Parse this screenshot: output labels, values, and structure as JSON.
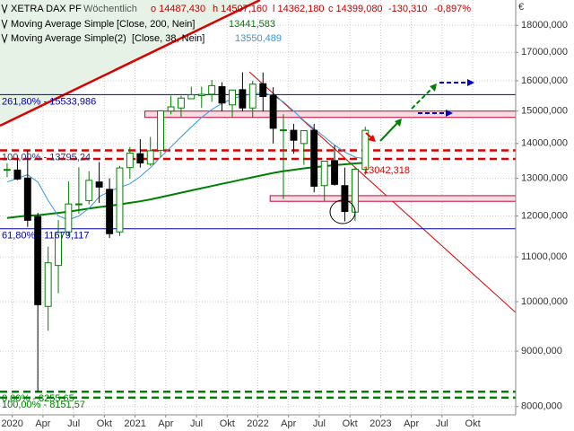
{
  "chart_data": {
    "type": "candlestick",
    "header": {
      "title": "XETRA DAX PF",
      "interval": "Wöchentlich",
      "open": "o 14487,430",
      "high": "h 14507,160",
      "low": "l 14362,180",
      "close": "c 14399,080",
      "change": "-130,310",
      "change_pct": "-0,897%"
    },
    "currency": "€",
    "log_scale": true,
    "grid": true,
    "ylim": [
      7860,
      19000
    ],
    "yticks": [
      {
        "value": 8000,
        "label": "8000,000"
      },
      {
        "value": 9000,
        "label": "9000,000"
      },
      {
        "value": 10000,
        "label": "10000,000"
      },
      {
        "value": 11000,
        "label": "11000,000"
      },
      {
        "value": 12000,
        "label": "12000,000"
      },
      {
        "value": 13000,
        "label": "13000,000"
      },
      {
        "value": 14000,
        "label": "14000,000"
      },
      {
        "value": 15000,
        "label": "15000,000"
      },
      {
        "value": 16000,
        "label": "16000,000"
      },
      {
        "value": 17000,
        "label": "17000,000"
      },
      {
        "value": 18000,
        "label": "18000,000"
      }
    ],
    "xlim": [
      2019.9,
      2024.1
    ],
    "xticks": [
      {
        "value": 2020,
        "label": "2020"
      },
      {
        "value": 2020.25,
        "label": "Apr"
      },
      {
        "value": 2020.5,
        "label": "Jul"
      },
      {
        "value": 2020.75,
        "label": "Okt"
      },
      {
        "value": 2021,
        "label": "2021"
      },
      {
        "value": 2021.25,
        "label": "Apr"
      },
      {
        "value": 2021.5,
        "label": "Jul"
      },
      {
        "value": 2021.75,
        "label": "Okt"
      },
      {
        "value": 2022,
        "label": "2022"
      },
      {
        "value": 2022.25,
        "label": "Apr"
      },
      {
        "value": 2022.5,
        "label": "Jul"
      },
      {
        "value": 2022.75,
        "label": "Okt"
      },
      {
        "value": 2023,
        "label": "2023"
      },
      {
        "value": 2023.25,
        "label": "Apr"
      },
      {
        "value": 2023.5,
        "label": "Jul"
      },
      {
        "value": 2023.75,
        "label": "Okt"
      }
    ],
    "up_color": "#008000",
    "down_color": "#000000",
    "x": [
      2019.958,
      2020.042,
      2020.125,
      2020.208,
      2020.292,
      2020.375,
      2020.458,
      2020.542,
      2020.625,
      2020.708,
      2020.792,
      2020.875,
      2020.958,
      2021.042,
      2021.125,
      2021.208,
      2021.292,
      2021.375,
      2021.458,
      2021.542,
      2021.625,
      2021.708,
      2021.792,
      2021.875,
      2021.958,
      2022.042,
      2022.125,
      2022.208,
      2022.292,
      2022.375,
      2022.458,
      2022.542,
      2022.625,
      2022.708,
      2022.792,
      2022.875
    ],
    "open": [
      13236,
      13233,
      13009,
      11985,
      9900,
      10800,
      11600,
      12300,
      12400,
      12900,
      12700,
      11600,
      13300,
      13700,
      13400,
      13800,
      15000,
      15100,
      15400,
      15500,
      15550,
      15800,
      15200,
      15700,
      15100,
      15900,
      15500,
      14400,
      14400,
      14000,
      14400,
      12800,
      13500,
      12800,
      12100,
      13250
    ],
    "high": [
      13425,
      13640,
      13795,
      12080,
      11240,
      11900,
      12913,
      13313,
      13200,
      13460,
      13000,
      13350,
      13900,
      14131,
      14200,
      15030,
      15500,
      15500,
      15800,
      15800,
      16030,
      15950,
      15700,
      16290,
      16000,
      16285,
      15780,
      14900,
      14600,
      14400,
      14600,
      13400,
      13950,
      13300,
      13300,
      14507
    ],
    "low": [
      13036,
      12950,
      11724,
      8256,
      9400,
      10180,
      11500,
      12060,
      12300,
      12340,
      11450,
      11500,
      12990,
      13300,
      13350,
      13600,
      14900,
      14800,
      15400,
      15100,
      15300,
      15000,
      14800,
      15000,
      14800,
      15000,
      14000,
      12439,
      13700,
      13380,
      12618,
      12390,
      12800,
      11863,
      11869,
      13100
    ],
    "close": [
      13249,
      12982,
      11890,
      9936,
      10862,
      11587,
      12311,
      12313,
      12945,
      12761,
      11556,
      13291,
      13719,
      13432,
      13786,
      15008,
      15136,
      15421,
      15531,
      15544,
      15835,
      15260,
      15688,
      15100,
      15885,
      15471,
      14461,
      14414,
      14098,
      14388,
      12784,
      13484,
      12835,
      12114,
      13253,
      14399
    ],
    "series": [
      {
        "name": "Moving Average Simple",
        "params": "[Close, 200, Nein]",
        "last_label": "13441,583",
        "color": "#008000",
        "values": [
          11950,
          11980,
          12010,
          12020,
          12050,
          12080,
          12110,
          12150,
          12190,
          12230,
          12260,
          12300,
          12340,
          12380,
          12430,
          12490,
          12550,
          12610,
          12670,
          12730,
          12790,
          12850,
          12910,
          12970,
          13030,
          13090,
          13150,
          13200,
          13240,
          13280,
          13310,
          13340,
          13370,
          13395,
          13420,
          13441
        ]
      },
      {
        "name": "Moving Average Simple(2)",
        "params": "[Close, 38, Nein]",
        "last_label": "13550,489",
        "color": "#3399dd",
        "values": [
          12900,
          13000,
          13100,
          12900,
          12400,
          12000,
          11900,
          12000,
          12200,
          12500,
          12650,
          12750,
          12850,
          13050,
          13300,
          13600,
          13900,
          14200,
          14500,
          14800,
          15050,
          15250,
          15400,
          15500,
          15550,
          15600,
          15500,
          15300,
          15000,
          14700,
          14450,
          14200,
          13950,
          13750,
          13600,
          13550
        ]
      }
    ],
    "levels": [
      {
        "value": 15533.986,
        "label": "261,80% - 15533,986",
        "color": "#0000aa",
        "dash": false
      },
      {
        "value": 13795.24,
        "label": "100,00% - 13795,24",
        "color": "#dd0000",
        "dash": true
      },
      {
        "value": 13550,
        "color": "#dd0000",
        "dash": true
      },
      {
        "value": 11679.117,
        "label": "61,80% - 11679,117",
        "color": "#0000aa",
        "dash": false
      },
      {
        "value": 8255.65,
        "label": "0,00% - 8255,65",
        "color": "#008000",
        "dash": true
      },
      {
        "value": 8151.57,
        "label": "100,00% - 8151,57",
        "color": "#008000",
        "dash": true
      }
    ],
    "bands": [
      {
        "from": 14800,
        "to": 15000,
        "start": 2021.08
      },
      {
        "from": 12380,
        "to": 12530,
        "start": 2022.1
      }
    ],
    "annotation": "13042,318"
  }
}
